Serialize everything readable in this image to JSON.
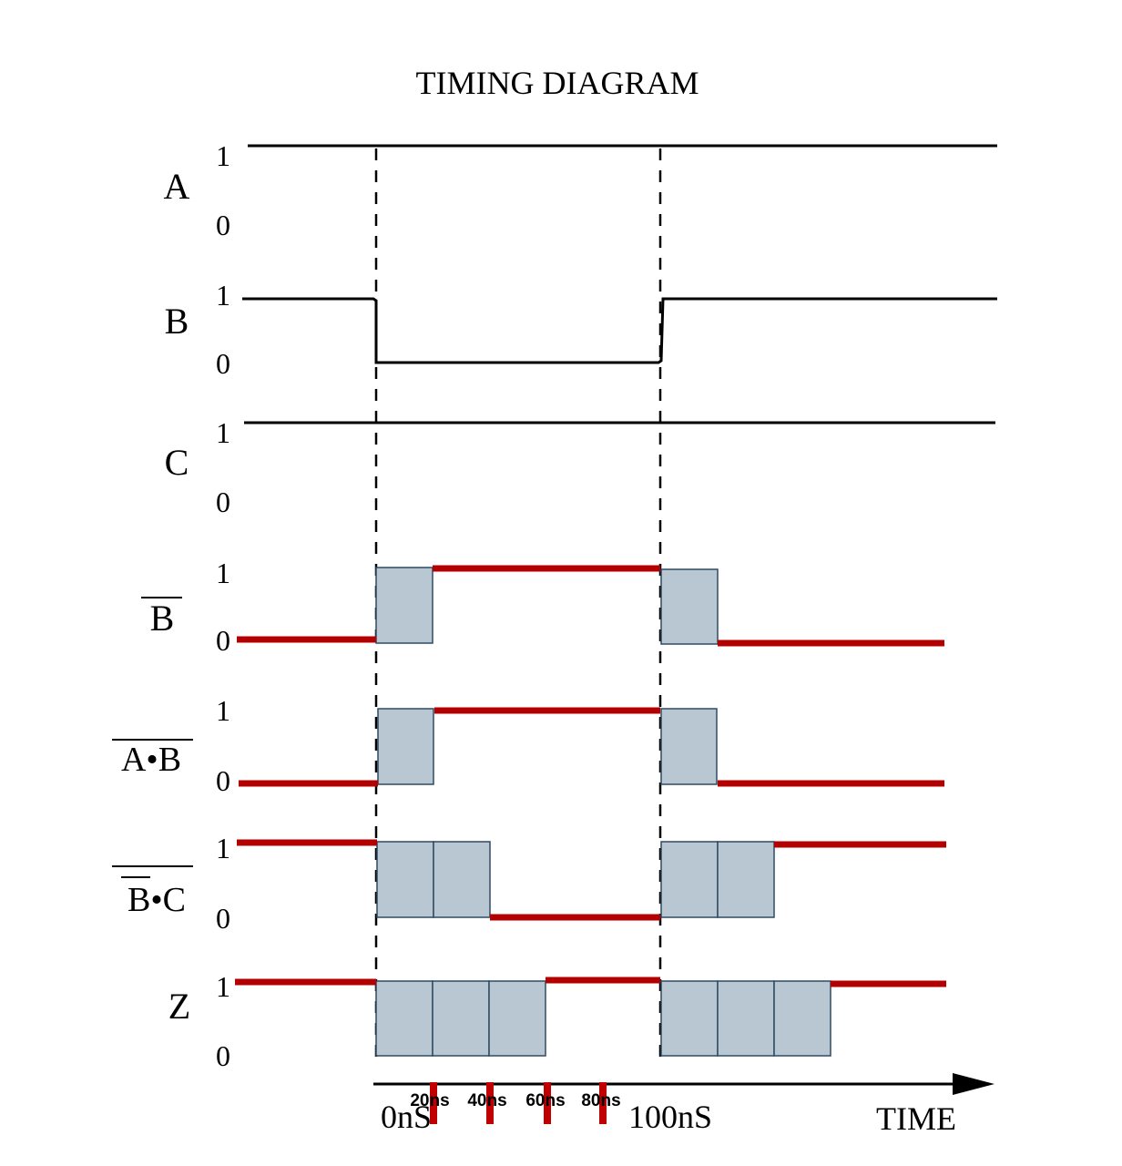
{
  "title": "TIMING DIAGRAM",
  "time_axis": {
    "label": "TIME",
    "major_ticks": [
      "0nS",
      "100nS"
    ],
    "minor_ticks": [
      "20ns",
      "40ns",
      "60ns",
      "80ns"
    ]
  },
  "level_labels": {
    "high": "1",
    "low": "0"
  },
  "signals": [
    {
      "id": "A",
      "label": "A",
      "overline": "",
      "levels": {
        "before": 1,
        "during": 1,
        "after": 1
      }
    },
    {
      "id": "B",
      "label": "B",
      "overline": "",
      "levels": {
        "before": 1,
        "during": 0,
        "after": 1
      }
    },
    {
      "id": "C",
      "label": "C",
      "overline": "",
      "levels": {
        "before": 1,
        "during": 1,
        "after": 1
      }
    },
    {
      "id": "NB",
      "label": "B",
      "overline": "single",
      "delay_units": 1,
      "levels": {
        "before": 0,
        "during": 1,
        "after": 0
      }
    },
    {
      "id": "NAB",
      "label": "A•B",
      "overline": "single",
      "delay_units": 1,
      "levels": {
        "before": 0,
        "during": 1,
        "after": 0
      }
    },
    {
      "id": "NNBC",
      "label": "B•C",
      "overline": "double",
      "delay_units": 2,
      "levels": {
        "before": 1,
        "during": 0,
        "after": 1
      }
    },
    {
      "id": "Z",
      "label": "Z",
      "overline": "",
      "delay_units": 3,
      "levels": {
        "before": 1,
        "during": 1,
        "after": 1
      }
    }
  ],
  "colors": {
    "input_line": "#000000",
    "output_line": "#b30000",
    "delay_box_fill": "#b9c7d3",
    "delay_box_stroke": "#2e4a63"
  }
}
